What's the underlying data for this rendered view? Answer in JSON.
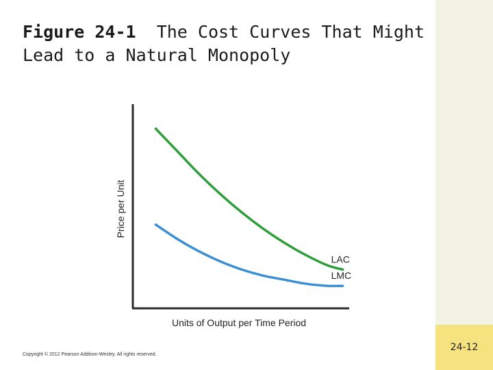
{
  "slide": {
    "title_bold": "Figure 24-1",
    "title_rest_line1": "The Cost Curves That Might",
    "title_line2": "Lead to a Natural Monopoly",
    "copyright": "Copyright © 2012 Pearson Addison-Wesley. All rights reserved.",
    "page_number": "24-12"
  },
  "colors": {
    "lac": "#2e9e3a",
    "lmc": "#3a8fd4",
    "axis": "#2a2a2a",
    "side_bar": "#f3f3e4",
    "page_number_bg": "#f6e27f"
  },
  "chart_data": {
    "type": "line",
    "title": "",
    "xlabel": "Units of Output per Time Period",
    "ylabel": "Price per Unit",
    "xlim": [
      0,
      100
    ],
    "ylim": [
      0,
      100
    ],
    "grid": false,
    "legend": "inline labels at right end of curves",
    "series": [
      {
        "name": "LAC",
        "x": [
          10,
          20,
          30,
          40,
          50,
          60,
          70,
          80,
          90,
          97
        ],
        "y": [
          88,
          77,
          66,
          56,
          47,
          39,
          32,
          26,
          21,
          19
        ]
      },
      {
        "name": "LMC",
        "x": [
          10,
          20,
          30,
          40,
          50,
          60,
          70,
          80,
          90,
          97
        ],
        "y": [
          41,
          34,
          28,
          23,
          19,
          16,
          14,
          12,
          11,
          11
        ]
      }
    ]
  }
}
